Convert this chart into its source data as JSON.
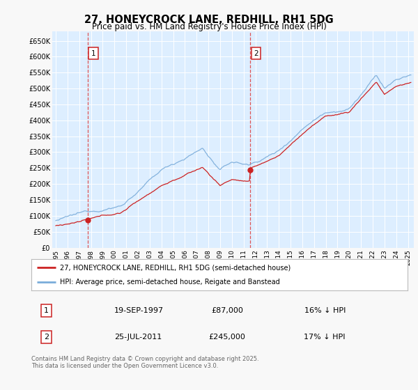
{
  "title": "27, HONEYCROCK LANE, REDHILL, RH1 5DG",
  "subtitle": "Price paid vs. HM Land Registry's House Price Index (HPI)",
  "legend_line1": "27, HONEYCROCK LANE, REDHILL, RH1 5DG (semi-detached house)",
  "legend_line2": "HPI: Average price, semi-detached house, Reigate and Banstead",
  "footer": "Contains HM Land Registry data © Crown copyright and database right 2025.\nThis data is licensed under the Open Government Licence v3.0.",
  "annotation1": {
    "label": "1",
    "date": "19-SEP-1997",
    "price": "£87,000",
    "hpi": "16% ↓ HPI"
  },
  "annotation2": {
    "label": "2",
    "date": "25-JUL-2011",
    "price": "£245,000",
    "hpi": "17% ↓ HPI"
  },
  "purchase1": {
    "year": 1997.72,
    "price": 87000
  },
  "purchase2": {
    "year": 2011.56,
    "price": 245000
  },
  "fig_bg": "#f8f8f8",
  "chart_bg": "#ddeeff",
  "grid_color": "#ffffff",
  "red_line_color": "#cc2222",
  "blue_line_color": "#7aacda",
  "dashed_color": "#dd4444",
  "ylim_max": 680000,
  "ytick_values": [
    0,
    50000,
    100000,
    150000,
    200000,
    250000,
    300000,
    350000,
    400000,
    450000,
    500000,
    550000,
    600000,
    650000
  ],
  "xlim": [
    1994.7,
    2025.5
  ],
  "xticks": [
    1995,
    1996,
    1997,
    1998,
    1999,
    2000,
    2001,
    2002,
    2003,
    2004,
    2005,
    2006,
    2007,
    2008,
    2009,
    2010,
    2011,
    2012,
    2013,
    2014,
    2015,
    2016,
    2017,
    2018,
    2019,
    2020,
    2021,
    2022,
    2023,
    2024,
    2025
  ]
}
